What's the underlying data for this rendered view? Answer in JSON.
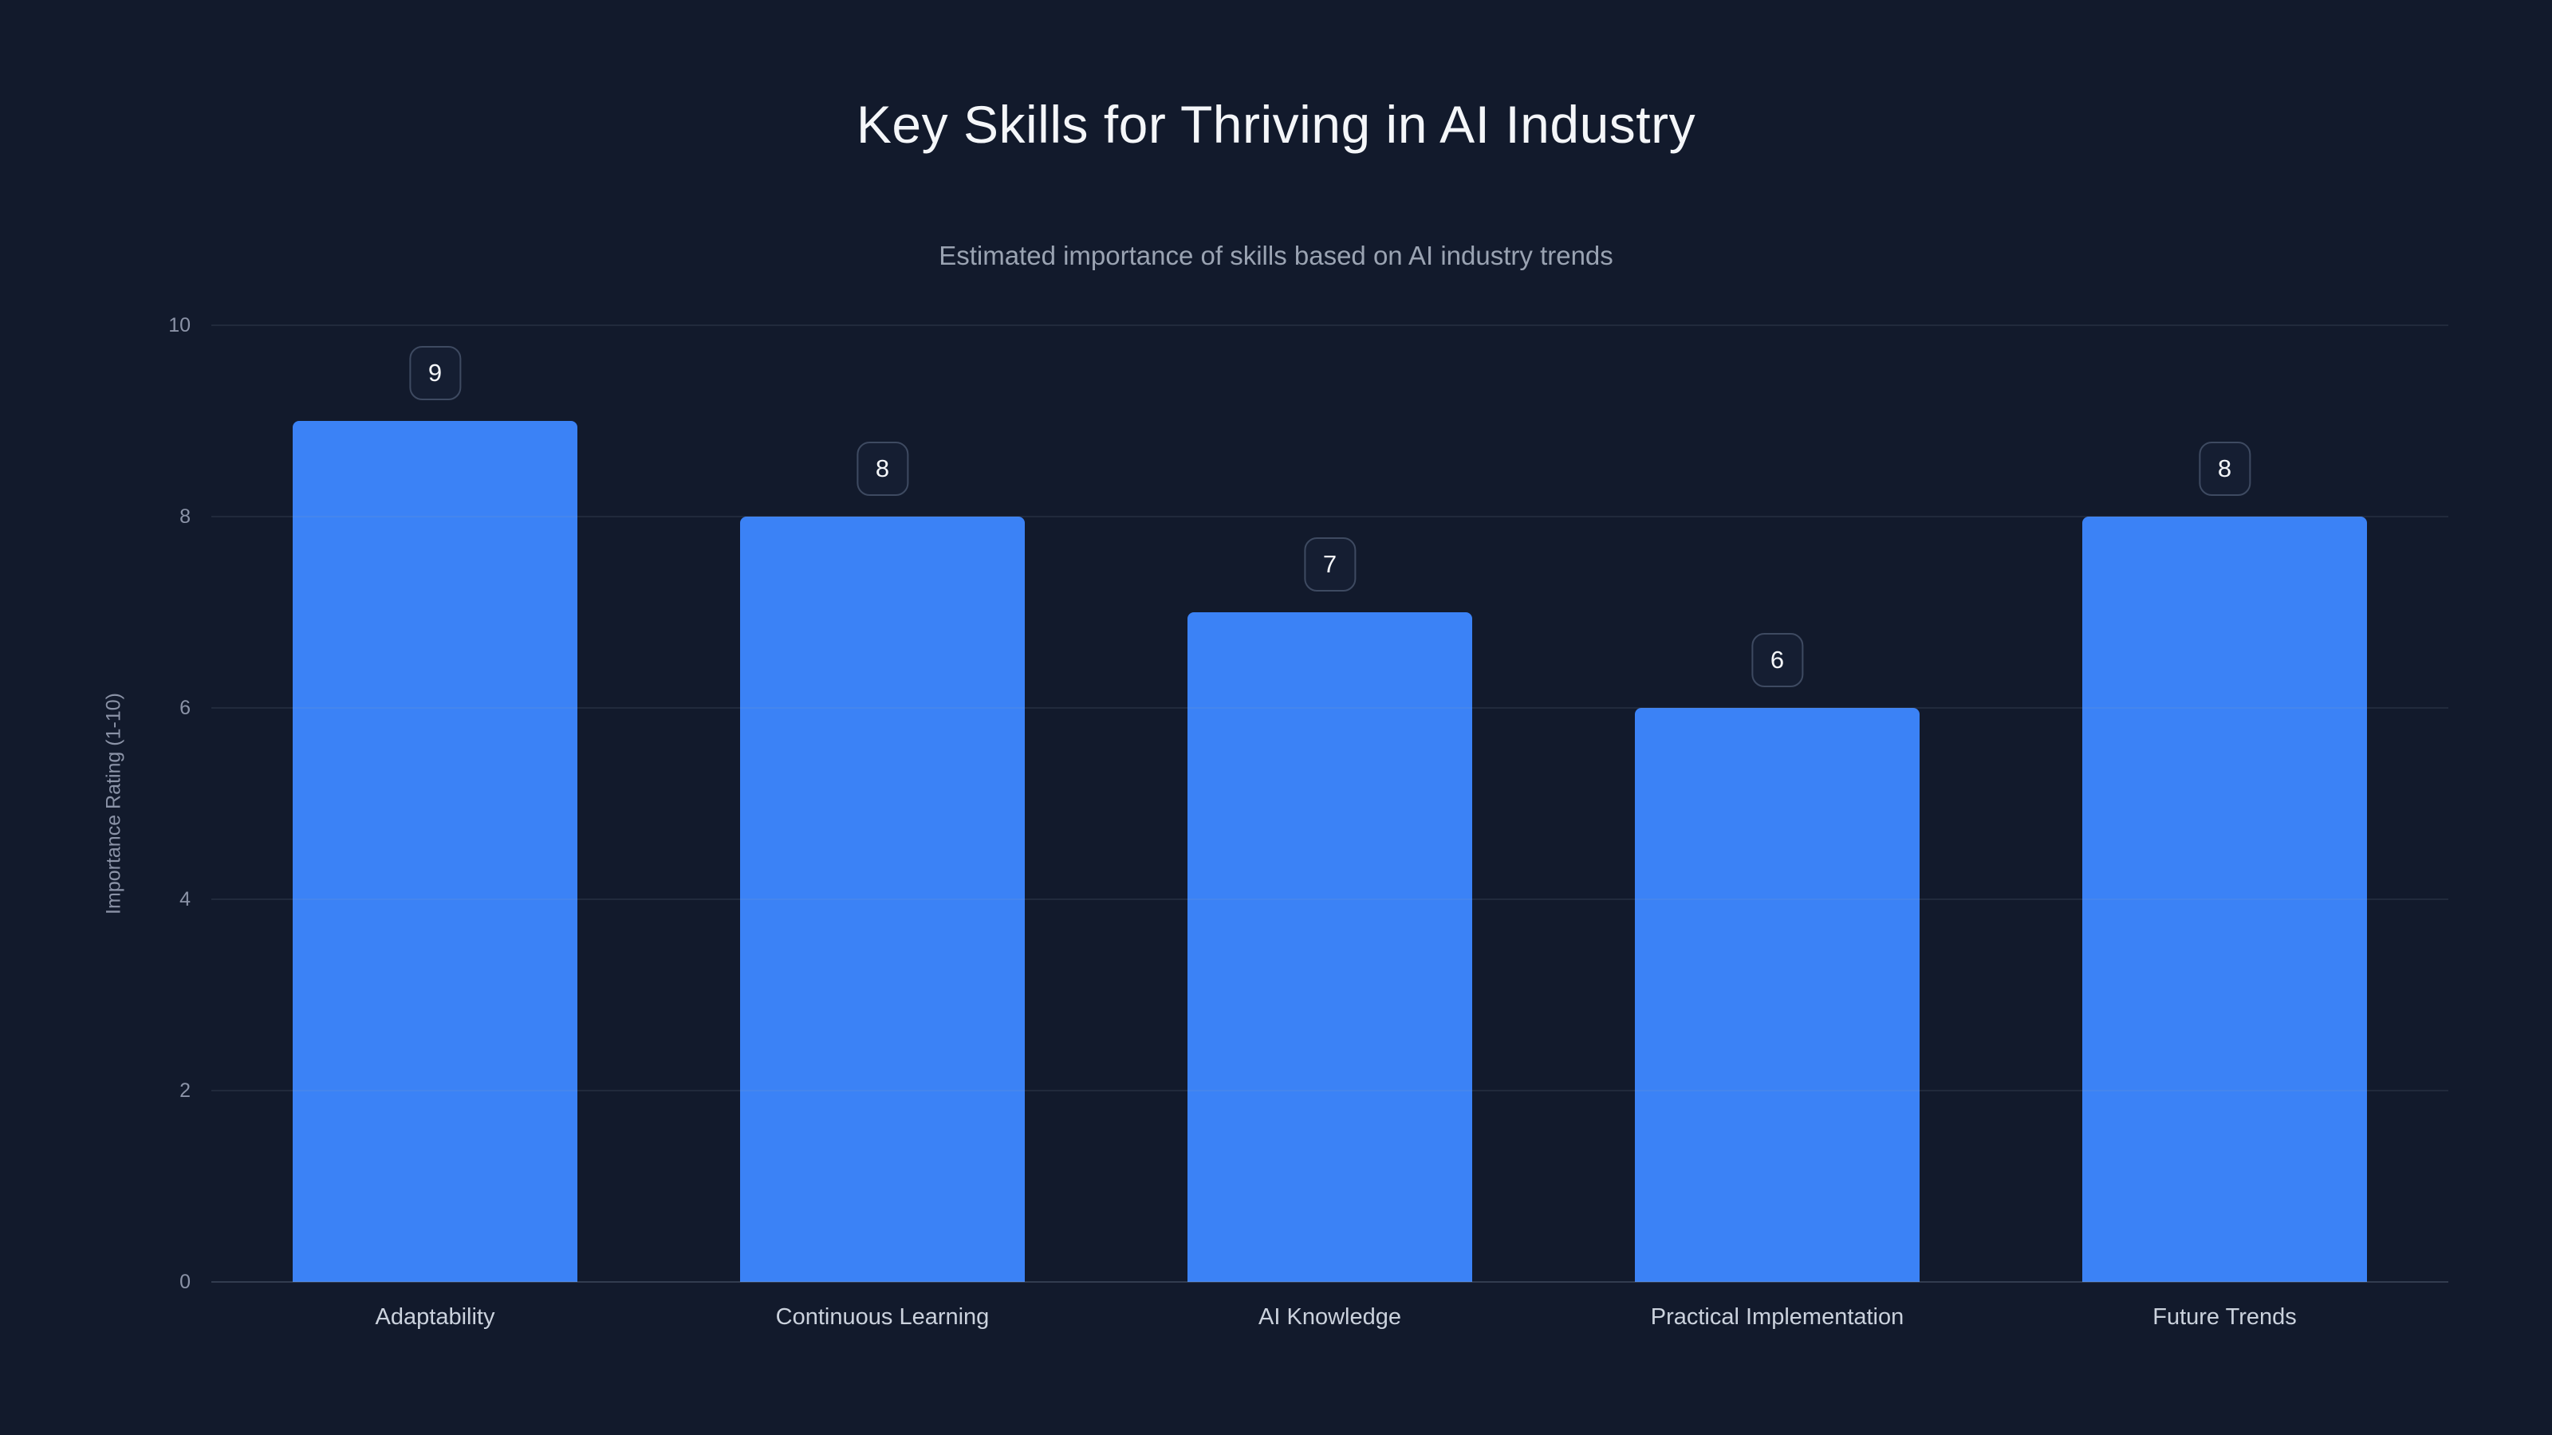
{
  "header": {
    "title": "Key Skills for Thriving in AI Industry",
    "subtitle": "Estimated importance of skills based on AI industry trends"
  },
  "chart_data": {
    "type": "bar",
    "title": "Key Skills for Thriving in AI Industry",
    "subtitle": "Estimated importance of skills based on AI industry trends",
    "categories": [
      "Adaptability",
      "Continuous Learning",
      "AI Knowledge",
      "Practical Implementation",
      "Future Trends"
    ],
    "values": [
      9,
      8,
      7,
      6,
      8
    ],
    "value_labels": [
      "9",
      "8",
      "7",
      "6",
      "8"
    ],
    "xlabel": "",
    "ylabel": "Importance Rating (1-10)",
    "ylim": [
      0,
      10
    ],
    "yticks": [
      0,
      2,
      4,
      6,
      8,
      10
    ],
    "grid": "horizontal",
    "legend": "none",
    "bar_color": "#3b82f6",
    "background_color": "#121a2c",
    "text_color": "#f4f6f9",
    "muted_text_color": "#8b93a7"
  }
}
